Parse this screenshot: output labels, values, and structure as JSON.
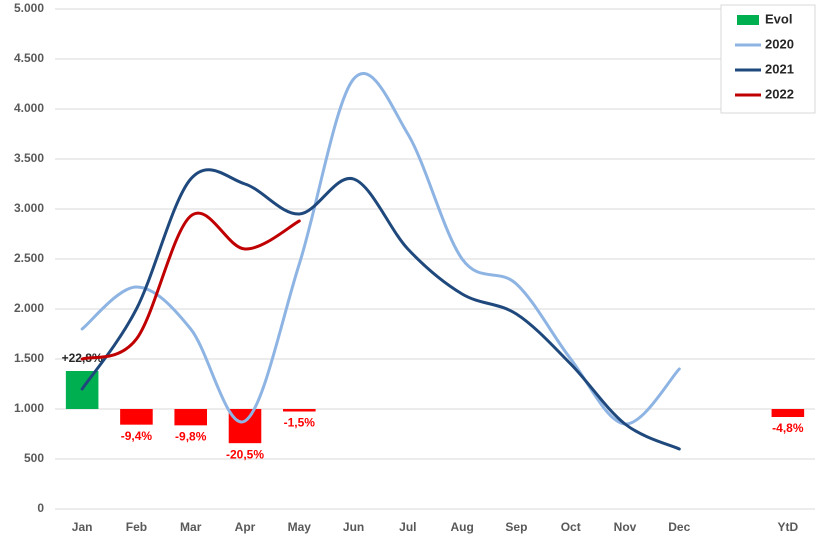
{
  "chart_data": {
    "type": "bar",
    "categories": [
      "Jan",
      "Feb",
      "Mar",
      "Apr",
      "May",
      "Jun",
      "Jul",
      "Aug",
      "Sep",
      "Oct",
      "Nov",
      "Dec",
      null,
      "YtD"
    ],
    "ylim": [
      0,
      5000
    ],
    "yticks": [
      0,
      500,
      {
        "value": 1000,
        "label": "1.000"
      },
      {
        "value": 1500,
        "label": "1.500"
      },
      {
        "value": 2000,
        "label": "2.000"
      },
      {
        "value": 2500,
        "label": "2.500"
      },
      {
        "value": 3000,
        "label": "3.000"
      },
      {
        "value": 3500,
        "label": "3.500"
      },
      {
        "value": 4000,
        "label": "4.000"
      },
      {
        "value": 4500,
        "label": "4.500"
      },
      {
        "value": 5000,
        "label": "5.000"
      }
    ],
    "y2lim": [
      -60,
      240
    ],
    "grid": true,
    "legend": "top-right",
    "series": [
      {
        "name": "Evol",
        "type": "bar",
        "axis": "y2",
        "color": "#00b050",
        "negative_color": "#ff0000",
        "values": [
          22.8,
          -9.4,
          -9.8,
          -20.5,
          -1.5,
          null,
          null,
          null,
          null,
          null,
          null,
          null,
          null,
          -4.8
        ],
        "value_labels": [
          "+22,8%",
          "-9,4%",
          "-9,8%",
          "-20,5%",
          "-1,5%",
          null,
          null,
          null,
          null,
          null,
          null,
          null,
          null,
          "-4,8%"
        ]
      },
      {
        "name": "2020",
        "type": "line",
        "color": "#8eb4e3",
        "values": [
          1800,
          2220,
          1800,
          880,
          2450,
          4300,
          3750,
          2500,
          2250,
          1500,
          850,
          1400,
          null,
          null
        ]
      },
      {
        "name": "2021",
        "type": "line",
        "color": "#1f497d",
        "values": [
          1200,
          2000,
          3300,
          3250,
          2950,
          3300,
          2600,
          2150,
          1950,
          1450,
          850,
          600,
          null,
          null
        ]
      },
      {
        "name": "2022",
        "type": "line",
        "color": "#c00000",
        "values": [
          1500,
          1700,
          2930,
          2600,
          2880,
          null,
          null,
          null,
          null,
          null,
          null,
          null,
          null,
          null
        ]
      }
    ]
  }
}
